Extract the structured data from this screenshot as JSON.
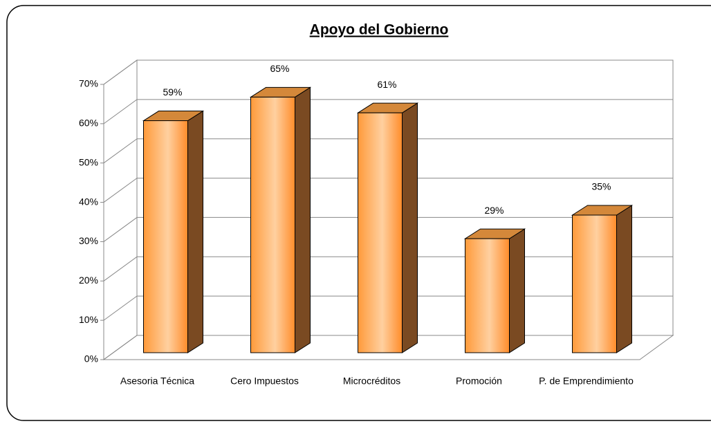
{
  "chart_data": {
    "type": "bar3d",
    "title": "Apoyo del Gobierno",
    "categories": [
      "Asesoria Técnica",
      "Cero Impuestos",
      "Microcréditos",
      "Promoción",
      "P. de Emprendimiento"
    ],
    "values": [
      59,
      65,
      61,
      29,
      35
    ],
    "value_labels": [
      "59%",
      "65%",
      "61%",
      "29%",
      "35%"
    ],
    "color": "#ff9933",
    "ylim": [
      0,
      70
    ],
    "yticks": [
      {
        "value": 0,
        "label": "0%"
      },
      {
        "value": 10,
        "label": "10%"
      },
      {
        "value": 20,
        "label": "20%"
      },
      {
        "value": 30,
        "label": "30%"
      },
      {
        "value": 40,
        "label": "40%"
      },
      {
        "value": 50,
        "label": "50%"
      },
      {
        "value": 60,
        "label": "60%"
      },
      {
        "value": 70,
        "label": "70%"
      }
    ],
    "grid": true
  }
}
